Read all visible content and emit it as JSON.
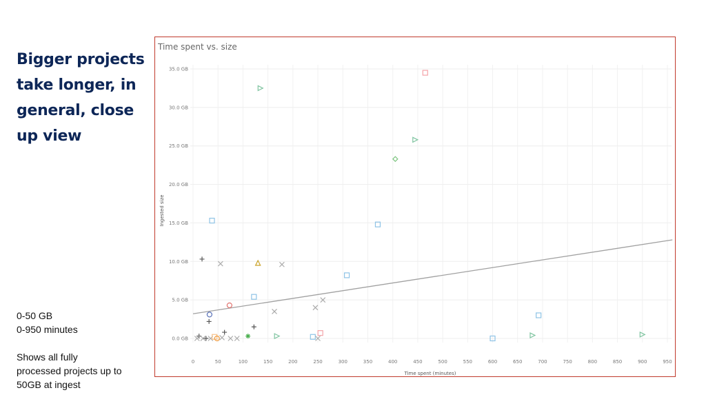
{
  "slide": {
    "heading_lines": [
      "Bigger projects",
      "take longer, in",
      "general, close",
      "up view"
    ],
    "notes": [
      "0-50 GB",
      "0-950 minutes",
      "",
      "Shows all fully",
      "processed projects up to",
      "50GB at ingest"
    ]
  },
  "colors": {
    "heading": "#0d2657",
    "frame": "#c0392b",
    "trend": "#a0a0a0"
  },
  "chart_data": {
    "type": "scatter",
    "title": "Time spent vs. size",
    "xlabel": "Time spent (minutes)",
    "ylabel": "Ingested size",
    "xlim": [
      0,
      950
    ],
    "ylim": [
      0,
      35
    ],
    "x_ticks": [
      0,
      50,
      100,
      150,
      200,
      250,
      300,
      350,
      400,
      450,
      500,
      550,
      600,
      650,
      700,
      750,
      800,
      850,
      900,
      950
    ],
    "y_ticks": [
      0,
      5,
      10,
      15,
      20,
      25,
      30,
      35
    ],
    "y_tick_labels": [
      "0.0 GB",
      "5.0 GB",
      "10.0 GB",
      "15.0 GB",
      "20.0 GB",
      "25.0 GB",
      "30.0 GB",
      "35.0 GB"
    ],
    "grid": true,
    "trend_line": {
      "x": [
        0,
        960
      ],
      "y": [
        3.2,
        12.8
      ]
    },
    "points": [
      {
        "x": 465,
        "y": 34.5,
        "marker": "square",
        "color": "#f4a3a8"
      },
      {
        "x": 135,
        "y": 32.5,
        "marker": "triangle-right",
        "color": "#7fc4a0"
      },
      {
        "x": 445,
        "y": 25.8,
        "marker": "triangle-right",
        "color": "#7fc4a0"
      },
      {
        "x": 405,
        "y": 23.3,
        "marker": "diamond",
        "color": "#7cc47f"
      },
      {
        "x": 38,
        "y": 15.3,
        "marker": "square",
        "color": "#8ec3e6"
      },
      {
        "x": 370,
        "y": 14.8,
        "marker": "square",
        "color": "#8ec3e6"
      },
      {
        "x": 18,
        "y": 10.3,
        "marker": "plus",
        "color": "#555555"
      },
      {
        "x": 55,
        "y": 9.7,
        "marker": "x",
        "color": "#aaaaaa"
      },
      {
        "x": 130,
        "y": 9.8,
        "marker": "triangle-up",
        "color": "#c9a227"
      },
      {
        "x": 178,
        "y": 9.6,
        "marker": "x",
        "color": "#aaaaaa"
      },
      {
        "x": 308,
        "y": 8.2,
        "marker": "square",
        "color": "#8ec3e6"
      },
      {
        "x": 122,
        "y": 5.4,
        "marker": "square",
        "color": "#8ec3e6"
      },
      {
        "x": 260,
        "y": 5.0,
        "marker": "x",
        "color": "#aaaaaa"
      },
      {
        "x": 73,
        "y": 4.3,
        "marker": "circle",
        "color": "#e0726e"
      },
      {
        "x": 245,
        "y": 4.0,
        "marker": "x",
        "color": "#aaaaaa"
      },
      {
        "x": 163,
        "y": 3.5,
        "marker": "x",
        "color": "#aaaaaa"
      },
      {
        "x": 33,
        "y": 3.1,
        "marker": "circle",
        "color": "#5b73b8"
      },
      {
        "x": 692,
        "y": 3.0,
        "marker": "square",
        "color": "#8ec3e6"
      },
      {
        "x": 32,
        "y": 2.2,
        "marker": "plus",
        "color": "#555555"
      },
      {
        "x": 122,
        "y": 1.5,
        "marker": "plus",
        "color": "#555555"
      },
      {
        "x": 63,
        "y": 0.8,
        "marker": "plus",
        "color": "#555555"
      },
      {
        "x": 255,
        "y": 0.7,
        "marker": "square",
        "color": "#f4a3a8"
      },
      {
        "x": 12,
        "y": 0.3,
        "marker": "plus",
        "color": "#555555"
      },
      {
        "x": 900,
        "y": 0.5,
        "marker": "triangle-right",
        "color": "#7fc4a0"
      },
      {
        "x": 680,
        "y": 0.4,
        "marker": "triangle-right",
        "color": "#7fc4a0"
      },
      {
        "x": 168,
        "y": 0.3,
        "marker": "triangle-right",
        "color": "#7fc4a0"
      },
      {
        "x": 110,
        "y": 0.3,
        "marker": "asterisk",
        "color": "#4caf50"
      },
      {
        "x": 240,
        "y": 0.2,
        "marker": "square",
        "color": "#8ec3e6"
      },
      {
        "x": 8,
        "y": 0.0,
        "marker": "x",
        "color": "#aaaaaa"
      },
      {
        "x": 20,
        "y": 0.0,
        "marker": "x",
        "color": "#aaaaaa"
      },
      {
        "x": 26,
        "y": 0.0,
        "marker": "plus",
        "color": "#555555"
      },
      {
        "x": 35,
        "y": 0.0,
        "marker": "x",
        "color": "#aaaaaa"
      },
      {
        "x": 43,
        "y": 0.2,
        "marker": "square",
        "color": "#f6c28b"
      },
      {
        "x": 48,
        "y": 0.0,
        "marker": "circle",
        "color": "#f39c3d"
      },
      {
        "x": 58,
        "y": 0.1,
        "marker": "x",
        "color": "#aaaaaa"
      },
      {
        "x": 75,
        "y": 0.0,
        "marker": "x",
        "color": "#aaaaaa"
      },
      {
        "x": 88,
        "y": 0.0,
        "marker": "x",
        "color": "#aaaaaa"
      },
      {
        "x": 250,
        "y": 0.0,
        "marker": "x",
        "color": "#aaaaaa"
      },
      {
        "x": 600,
        "y": 0.0,
        "marker": "square",
        "color": "#8ec3e6"
      }
    ]
  }
}
